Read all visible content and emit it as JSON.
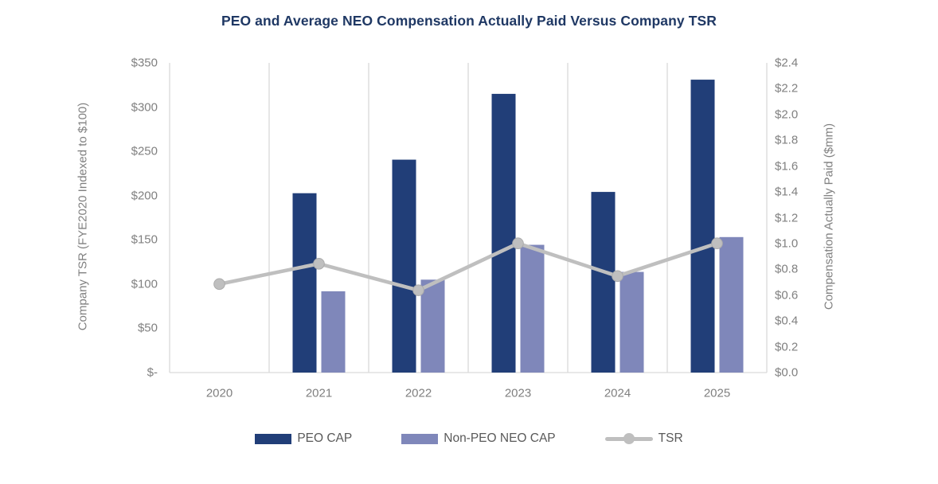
{
  "title": "PEO and Average NEO Compensation Actually Paid Versus Company TSR",
  "colors": {
    "title": "#1F3864",
    "peo_bar": "#213E78",
    "non_peo_bar": "#7F87BA",
    "tsr_line": "#BFBFBF",
    "tsr_marker_edge": "#ABABAB",
    "gridline": "#D9D9D9",
    "axis_text": "#808080",
    "legend_text": "#595959"
  },
  "chart_data": {
    "type": "bar",
    "subtype": "combo-bar-line",
    "title": "PEO and Average NEO Compensation Actually Paid Versus Company TSR",
    "categories": [
      "2020",
      "2021",
      "2022",
      "2023",
      "2024",
      "2025"
    ],
    "series": [
      {
        "name": "PEO CAP",
        "type": "bar",
        "axis": "right",
        "color": "#213E78",
        "values": [
          null,
          1.39,
          1.65,
          2.16,
          1.4,
          2.27
        ]
      },
      {
        "name": "Non-PEO NEO CAP",
        "type": "bar",
        "axis": "right",
        "color": "#7F87BA",
        "values": [
          null,
          0.63,
          0.72,
          0.99,
          0.78,
          1.05
        ]
      },
      {
        "name": "TSR",
        "type": "line",
        "axis": "left",
        "color": "#BFBFBF",
        "values": [
          100,
          123,
          93,
          146,
          109,
          146
        ]
      }
    ],
    "left_axis": {
      "title": "Company TSR (FYE2020 Indexed to $100)",
      "min": 0,
      "max": 350,
      "step": 50,
      "ticks": [
        "$-",
        "$50",
        "$100",
        "$150",
        "$200",
        "$250",
        "$300",
        "$350"
      ]
    },
    "right_axis": {
      "title": "Compensation Actually Paid ($mm)",
      "min": 0.0,
      "max": 2.4,
      "step": 0.2,
      "ticks": [
        "$0.0",
        "$0.2",
        "$0.4",
        "$0.6",
        "$0.8",
        "$1.0",
        "$1.2",
        "$1.4",
        "$1.6",
        "$1.8",
        "$2.0",
        "$2.2",
        "$2.4"
      ]
    },
    "legend_position": "bottom",
    "gridlines": "vertical-only"
  }
}
